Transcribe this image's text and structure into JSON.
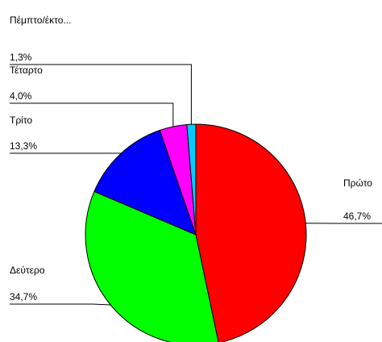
{
  "chart_data": {
    "type": "pie",
    "title": "",
    "slices": [
      {
        "label": "Πρώτο",
        "value": 46.7,
        "value_label": "46,7%",
        "color": "#ff0000"
      },
      {
        "label": "Δεύτερο",
        "value": 34.7,
        "value_label": "34,7%",
        "color": "#00ff00"
      },
      {
        "label": "Τρίτο",
        "value": 13.3,
        "value_label": "13,3%",
        "color": "#0000ff"
      },
      {
        "label": "Τέταρτο",
        "value": 4.0,
        "value_label": "4,0%",
        "color": "#ff00ff"
      },
      {
        "label": "Πέμπτο/έκτο...",
        "value": 1.3,
        "value_label": "1,3%",
        "color": "#00ccff"
      }
    ],
    "start_angle": "12 o'clock",
    "direction": "clockwise",
    "legend": "none"
  }
}
